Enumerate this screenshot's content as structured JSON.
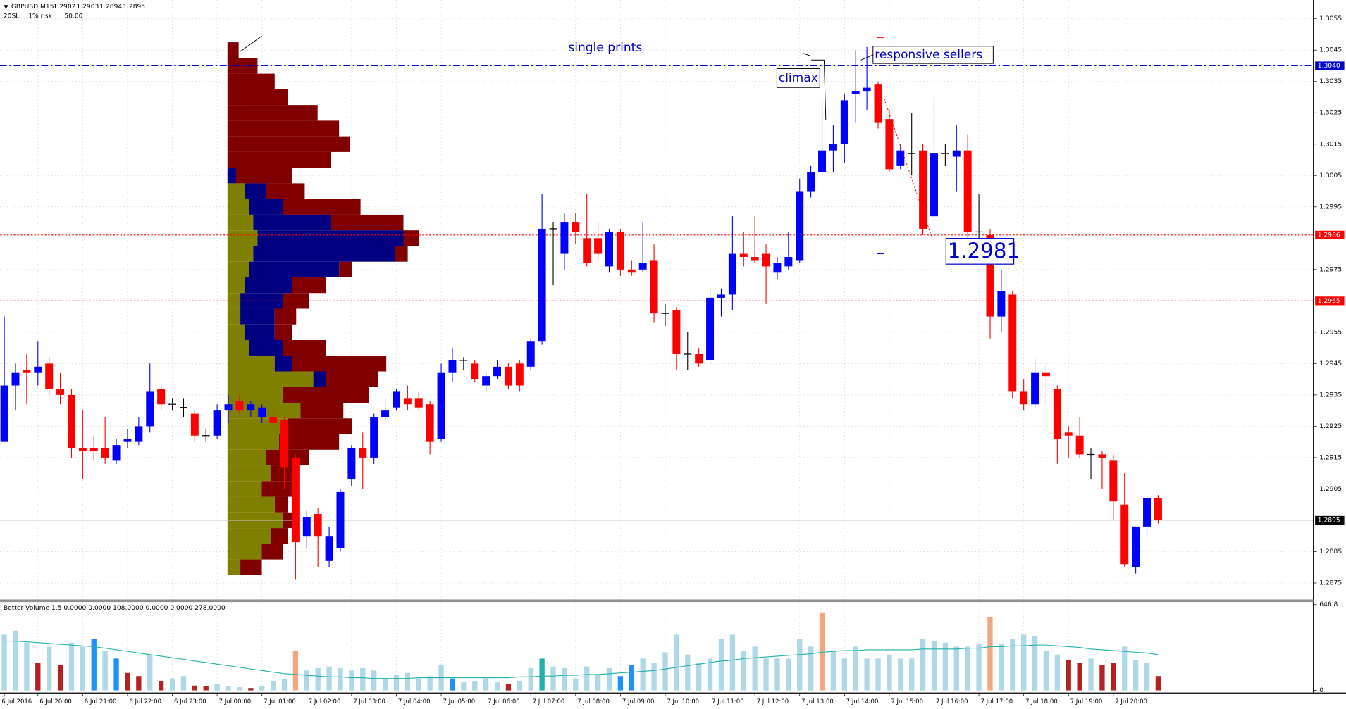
{
  "header": {
    "symbol": "GBPUSD,M15",
    "sl": "20SL",
    "risk": "1% risk",
    "amount": "50.00"
  },
  "chart_data": {
    "type": "candlestick",
    "up_color": "#0000ff",
    "down_color": "#ff0000",
    "doji_color": "#000000",
    "grid": true,
    "ylim": [
      1.287,
      1.3061
    ],
    "yticks": [
      1.3055,
      1.3045,
      1.3035,
      1.3025,
      1.3015,
      1.3005,
      1.2995,
      1.2975,
      1.2955,
      1.2945,
      1.2935,
      1.2925,
      1.2915,
      1.2905,
      1.2885,
      1.2875
    ],
    "categories": [
      "6 Jul 2016",
      null,
      null,
      "6 Jul 20:00",
      null,
      null,
      null,
      "6 Jul 21:00",
      null,
      null,
      null,
      "6 Jul 22:00",
      null,
      null,
      null,
      "6 Jul 23:00",
      null,
      null,
      null,
      "7 Jul 00:00",
      null,
      null,
      null,
      "7 Jul 01:00",
      null,
      null,
      null,
      "7 Jul 02:00",
      null,
      null,
      null,
      "7 Jul 03:00",
      null,
      null,
      null,
      "7 Jul 04:00",
      null,
      null,
      null,
      "7 Jul 05:00",
      null,
      null,
      null,
      "7 Jul 06:00",
      null,
      null,
      null,
      "7 Jul 07:00",
      null,
      null,
      null,
      "7 Jul 08:00",
      null,
      null,
      null,
      "7 Jul 09:00",
      null,
      null,
      null,
      "7 Jul 10:00",
      null,
      null,
      null,
      "7 Jul 11:00",
      null,
      null,
      null,
      "7 Jul 12:00",
      null,
      null,
      null,
      "7 Jul 13:00",
      null,
      null,
      null,
      "7 Jul 14:00",
      null,
      null,
      null,
      "7 Jul 15:00",
      null,
      null,
      null,
      "7 Jul 16:00",
      null,
      null,
      null,
      "7 Jul 17:00",
      null,
      null,
      null,
      "7 Jul 18:00",
      null,
      null,
      null,
      "7 Jul 19:00",
      null,
      null,
      null,
      "7 Jul 20:00",
      null,
      null,
      null,
      null
    ],
    "candles": [
      [
        1.292,
        1.296,
        1.292,
        1.2938
      ],
      [
        1.2938,
        1.2945,
        1.293,
        1.2942
      ],
      [
        1.2943,
        1.2948,
        1.2932,
        1.2942
      ],
      [
        1.2942,
        1.2952,
        1.2938,
        1.2944
      ],
      [
        1.2945,
        1.2947,
        1.2935,
        1.2937
      ],
      [
        1.2937,
        1.2942,
        1.2932,
        1.2935
      ],
      [
        1.2935,
        1.2937,
        1.2915,
        1.2918
      ],
      [
        1.2918,
        1.293,
        1.2908,
        1.2917
      ],
      [
        1.2918,
        1.2922,
        1.2914,
        1.2917
      ],
      [
        1.2918,
        1.2928,
        1.2913,
        1.2915
      ],
      [
        1.2914,
        1.2921,
        1.2913,
        1.2919
      ],
      [
        1.292,
        1.2924,
        1.2918,
        1.2921
      ],
      [
        1.292,
        1.2928,
        1.2919,
        1.2925
      ],
      [
        1.2925,
        1.2945,
        1.2923,
        1.2936
      ],
      [
        1.2937,
        1.2938,
        1.293,
        1.2932
      ],
      [
        1.2932,
        1.2934,
        1.293,
        1.2932
      ],
      [
        1.2931,
        1.2934,
        1.2928,
        1.2931
      ],
      [
        1.2929,
        1.293,
        1.292,
        1.2922
      ],
      [
        1.2922,
        1.2924,
        1.292,
        1.2922
      ],
      [
        1.2922,
        1.2932,
        1.2921,
        1.293
      ],
      [
        1.293,
        1.2935,
        1.2926,
        1.2932
      ],
      [
        1.2933,
        1.2935,
        1.2929,
        1.293
      ],
      [
        1.293,
        1.2933,
        1.2928,
        1.2932
      ],
      [
        1.2928,
        1.2932,
        1.2926,
        1.2931
      ],
      [
        1.2928,
        1.293,
        1.2924,
        1.2926
      ],
      [
        1.2927,
        1.2928,
        1.2905,
        1.2912
      ],
      [
        1.2915,
        1.2916,
        1.2876,
        1.2888
      ],
      [
        1.289,
        1.2898,
        1.2886,
        1.2896
      ],
      [
        1.2897,
        1.2899,
        1.288,
        1.289
      ],
      [
        1.2882,
        1.2893,
        1.288,
        1.289
      ],
      [
        1.2886,
        1.2905,
        1.2885,
        1.2904
      ],
      [
        1.2908,
        1.2919,
        1.2906,
        1.2918
      ],
      [
        1.2918,
        1.2923,
        1.2905,
        1.2915
      ],
      [
        1.2915,
        1.2929,
        1.2913,
        1.2928
      ],
      [
        1.2928,
        1.2934,
        1.2927,
        1.293
      ],
      [
        1.2931,
        1.2937,
        1.293,
        1.2936
      ],
      [
        1.2934,
        1.2938,
        1.293,
        1.2932
      ],
      [
        1.2934,
        1.2936,
        1.293,
        1.2931
      ],
      [
        1.2932,
        1.2933,
        1.2916,
        1.292
      ],
      [
        1.2921,
        1.2945,
        1.292,
        1.2942
      ],
      [
        1.2942,
        1.295,
        1.2939,
        1.2946
      ],
      [
        1.2946,
        1.2947,
        1.2943,
        1.2946
      ],
      [
        1.2945,
        1.2946,
        1.2939,
        1.294
      ],
      [
        1.2938,
        1.2942,
        1.2936,
        1.2941
      ],
      [
        1.2941,
        1.2946,
        1.294,
        1.2944
      ],
      [
        1.2944,
        1.2945,
        1.2937,
        1.2938
      ],
      [
        1.2945,
        1.2946,
        1.2936,
        1.2938
      ],
      [
        1.2944,
        1.2953,
        1.2943,
        1.2952
      ],
      [
        1.2952,
        1.2999,
        1.2951,
        1.2988
      ],
      [
        1.2988,
        1.299,
        1.297,
        1.2988
      ],
      [
        1.298,
        1.2993,
        1.2975,
        1.299
      ],
      [
        1.299,
        1.2993,
        1.2983,
        1.2987
      ],
      [
        1.2985,
        1.2999,
        1.2976,
        1.2977
      ],
      [
        1.2985,
        1.299,
        1.2978,
        1.298
      ],
      [
        1.2976,
        1.2988,
        1.2974,
        1.2987
      ],
      [
        1.2987,
        1.2988,
        1.2973,
        1.2975
      ],
      [
        1.2975,
        1.2978,
        1.2973,
        1.2974
      ],
      [
        1.2975,
        1.299,
        1.2974,
        1.2977
      ],
      [
        1.2978,
        1.2983,
        1.2958,
        1.2961
      ],
      [
        1.2961,
        1.2964,
        1.2957,
        1.2961
      ],
      [
        1.2962,
        1.2963,
        1.2943,
        1.2948
      ],
      [
        1.2948,
        1.2955,
        1.2943,
        1.2948
      ],
      [
        1.2948,
        1.295,
        1.2944,
        1.2945
      ],
      [
        1.2946,
        1.2969,
        1.2945,
        1.2966
      ],
      [
        1.2966,
        1.2969,
        1.296,
        1.2967
      ],
      [
        1.2967,
        1.2992,
        1.2962,
        1.298
      ],
      [
        1.298,
        1.2987,
        1.2976,
        1.2979
      ],
      [
        1.2979,
        1.2992,
        1.2977,
        1.2978
      ],
      [
        1.298,
        1.2983,
        1.2964,
        1.2976
      ],
      [
        1.2974,
        1.2979,
        1.2972,
        1.2977
      ],
      [
        1.2976,
        1.2987,
        1.2975,
        1.2979
      ],
      [
        1.2978,
        1.3004,
        1.2977,
        1.3
      ],
      [
        1.3,
        1.3008,
        1.2998,
        1.3006
      ],
      [
        1.3006,
        1.3029,
        1.3005,
        1.3013
      ],
      [
        1.3013,
        1.3021,
        1.3006,
        1.3015
      ],
      [
        1.3015,
        1.3031,
        1.3009,
        1.3029
      ],
      [
        1.3031,
        1.3045,
        1.3022,
        1.3032
      ],
      [
        1.3032,
        1.3046,
        1.3026,
        1.3033
      ],
      [
        1.3034,
        1.3035,
        1.302,
        1.3022
      ],
      [
        1.3023,
        1.3026,
        1.3006,
        1.3007
      ],
      [
        1.3008,
        1.3015,
        1.3007,
        1.3013
      ],
      [
        1.3012,
        1.3025,
        1.3005,
        1.3012
      ],
      [
        1.3013,
        1.3015,
        1.2986,
        1.2988
      ],
      [
        1.2992,
        1.303,
        1.2988,
        1.3012
      ],
      [
        1.3012,
        1.3015,
        1.3008,
        1.3012
      ],
      [
        1.3011,
        1.3021,
        1.3,
        1.3013
      ],
      [
        1.3013,
        1.3018,
        1.2985,
        1.2987
      ],
      [
        1.2987,
        1.2999,
        1.2985,
        1.2987
      ],
      [
        1.2986,
        1.2988,
        1.2953,
        1.296
      ],
      [
        1.296,
        1.2975,
        1.2955,
        1.2968
      ],
      [
        1.2967,
        1.2968,
        1.2934,
        1.2936
      ],
      [
        1.2936,
        1.294,
        1.293,
        1.2932
      ],
      [
        1.2932,
        1.2947,
        1.2931,
        1.2942
      ],
      [
        1.2942,
        1.2945,
        1.2932,
        1.2941
      ],
      [
        1.2937,
        1.2938,
        1.2913,
        1.2921
      ],
      [
        1.2923,
        1.2925,
        1.2915,
        1.2922
      ],
      [
        1.2922,
        1.2928,
        1.2915,
        1.2916
      ],
      [
        1.2916,
        1.2918,
        1.2908,
        1.2916
      ],
      [
        1.2916,
        1.2917,
        1.2905,
        1.2915
      ],
      [
        1.2914,
        1.2916,
        1.2895,
        1.2901
      ],
      [
        1.29,
        1.291,
        1.288,
        1.2881
      ],
      [
        1.288,
        1.2893,
        1.2878,
        1.2893
      ],
      [
        1.2893,
        1.2903,
        1.289,
        1.2902
      ],
      [
        1.2902,
        1.2903,
        1.2894,
        1.2895
      ]
    ],
    "levels": [
      {
        "value": 1.304,
        "label": "1.3040",
        "color": "#0000cd",
        "box_color": "#0000cd",
        "style": "dashdot"
      },
      {
        "value": 1.2986,
        "color": "#ff0000",
        "box_color": "#ff0000",
        "style": "dotted"
      },
      {
        "value": 1.2965,
        "color": "#ff0000",
        "box_color": "#ff0000",
        "style": "dotted"
      },
      {
        "value": 1.2895,
        "color": "#c8c8c8",
        "box_color": "#000000",
        "style": "solid"
      }
    ],
    "profile": {
      "step": 0.0005,
      "prices": [
        1.3045,
        1.304,
        1.3035,
        1.303,
        1.3025,
        1.302,
        1.3015,
        1.301,
        1.3005,
        1.3,
        1.2995,
        1.299,
        1.2985,
        1.298,
        1.2975,
        1.297,
        1.2965,
        1.296,
        1.2955,
        1.295,
        1.2945,
        1.294,
        1.2935,
        1.293,
        1.2925,
        1.292,
        1.2915,
        1.291,
        1.2905,
        1.29,
        1.2895,
        1.289,
        1.2885,
        1.288
      ],
      "segments": [
        {
          "color": "#808000",
          "values": [
            0,
            0,
            0,
            0,
            0,
            0,
            0,
            0,
            0,
            20,
            25,
            30,
            35,
            30,
            25,
            20,
            15,
            15,
            20,
            25,
            55,
            100,
            65,
            85,
            70,
            60,
            45,
            50,
            40,
            55,
            65,
            50,
            40,
            15
          ]
        },
        {
          "color": "#000080",
          "values": [
            0,
            0,
            0,
            0,
            0,
            0,
            0,
            0,
            10,
            25,
            40,
            90,
            170,
            165,
            105,
            55,
            50,
            40,
            35,
            40,
            20,
            15,
            0,
            0,
            0,
            0,
            0,
            0,
            0,
            0,
            0,
            0,
            0,
            0
          ]
        },
        {
          "color": "#800000",
          "values": [
            13,
            35,
            55,
            70,
            105,
            130,
            143,
            120,
            65,
            45,
            90,
            85,
            18,
            15,
            15,
            40,
            30,
            25,
            20,
            50,
            110,
            60,
            100,
            50,
            75,
            70,
            50,
            30,
            35,
            15,
            15,
            20,
            25,
            25
          ]
        }
      ]
    },
    "annotations": {
      "single_prints": "single prints",
      "climax": "climax",
      "responsive_sellers": "responsive sellers",
      "price_label": "1.2981"
    },
    "volume": {
      "title": "Better Volume 1.5 0.0000 0.0000 108.0000 0.0000 0.0000 278.0000",
      "ylim": [
        0,
        646.8
      ],
      "yticks": [
        646.8,
        0
      ],
      "values": [
        420,
        450,
        360,
        210,
        330,
        192,
        360,
        330,
        390,
        300,
        240,
        132,
        108,
        270,
        72,
        90,
        108,
        36,
        30,
        48,
        30,
        24,
        18,
        30,
        72,
        90,
        300,
        150,
        168,
        180,
        168,
        150,
        168,
        150,
        90,
        120,
        132,
        90,
        108,
        192,
        90,
        60,
        72,
        90,
        60,
        48,
        72,
        168,
        240,
        180,
        168,
        90,
        180,
        120,
        168,
        108,
        192,
        240,
        210,
        288,
        420,
        270,
        210,
        240,
        390,
        420,
        300,
        330,
        240,
        240,
        240,
        390,
        330,
        588,
        300,
        240,
        330,
        240,
        240,
        270,
        240,
        240,
        390,
        372,
        360,
        330,
        330,
        348,
        552,
        348,
        390,
        420,
        408,
        300,
        270,
        228,
        210,
        240,
        192,
        210,
        330,
        228,
        210,
        108
      ],
      "colors": [
        "#add8e6",
        "#add8e6",
        "#add8e6",
        "#b22222",
        "#add8e6",
        "#b22222",
        "#add8e6",
        "#add8e6",
        "#1e90ff",
        "#add8e6",
        "#1e90ff",
        "#b22222",
        "#b22222",
        "#add8e6",
        "#b22222",
        "#add8e6",
        "#add8e6",
        "#b22222",
        "#b22222",
        "#add8e6",
        "#add8e6",
        "#add8e6",
        "#b22222",
        "#add8e6",
        "#add8e6",
        "#add8e6",
        "#f4a582",
        "#add8e6",
        "#add8e6",
        "#add8e6",
        "#add8e6",
        "#add8e6",
        "#add8e6",
        "#add8e6",
        "#add8e6",
        "#add8e6",
        "#add8e6",
        "#add8e6",
        "#add8e6",
        "#add8e6",
        "#1e90ff",
        "#add8e6",
        "#add8e6",
        "#add8e6",
        "#add8e6",
        "#b22222",
        "#add8e6",
        "#add8e6",
        "#20b2aa",
        "#add8e6",
        "#add8e6",
        "#add8e6",
        "#add8e6",
        "#add8e6",
        "#add8e6",
        "#1e90ff",
        "#1e90ff",
        "#add8e6",
        "#add8e6",
        "#add8e6",
        "#add8e6",
        "#add8e6",
        "#add8e6",
        "#add8e6",
        "#add8e6",
        "#add8e6",
        "#add8e6",
        "#add8e6",
        "#add8e6",
        "#add8e6",
        "#add8e6",
        "#add8e6",
        "#add8e6",
        "#f4a582",
        "#add8e6",
        "#add8e6",
        "#add8e6",
        "#add8e6",
        "#add8e6",
        "#add8e6",
        "#add8e6",
        "#add8e6",
        "#add8e6",
        "#add8e6",
        "#add8e6",
        "#add8e6",
        "#add8e6",
        "#add8e6",
        "#f4a582",
        "#add8e6",
        "#add8e6",
        "#add8e6",
        "#add8e6",
        "#add8e6",
        "#add8e6",
        "#b22222",
        "#b22222",
        "#add8e6",
        "#b22222",
        "#b22222",
        "#add8e6",
        "#add8e6",
        "#add8e6",
        "#b22222"
      ],
      "ma": {
        "color": "#20b2aa",
        "values": [
          372,
          372,
          366,
          360,
          354,
          348,
          342,
          336,
          330,
          318,
          306,
          294,
          282,
          270,
          258,
          246,
          234,
          222,
          210,
          198,
          186,
          174,
          162,
          150,
          138,
          126,
          120,
          114,
          108,
          102,
          102,
          96,
          96,
          90,
          90,
          90,
          90,
          96,
          96,
          96,
          96,
          96,
          96,
          96,
          96,
          96,
          102,
          102,
          108,
          108,
          114,
          114,
          120,
          120,
          126,
          132,
          138,
          144,
          150,
          162,
          174,
          186,
          198,
          210,
          222,
          228,
          240,
          246,
          252,
          258,
          264,
          270,
          276,
          288,
          294,
          300,
          300,
          306,
          306,
          306,
          306,
          306,
          312,
          312,
          312,
          312,
          318,
          318,
          330,
          330,
          336,
          336,
          342,
          342,
          336,
          330,
          324,
          312,
          306,
          300,
          294,
          288,
          282,
          270
        ]
      }
    }
  }
}
